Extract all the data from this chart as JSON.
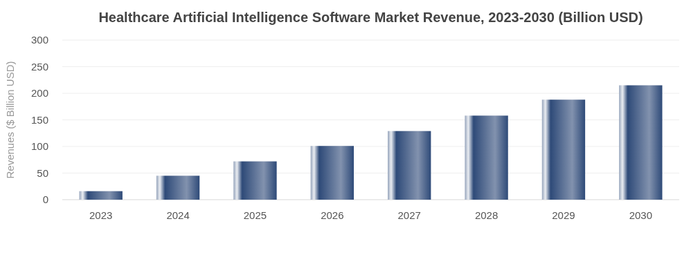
{
  "chart_data": {
    "type": "bar",
    "title": "Healthcare Artificial Intelligence Software Market Revenue, 2023-2030 (Billion USD)",
    "ylabel": "Revenues ($ Billion USD)",
    "categories": [
      "2023",
      "2024",
      "2025",
      "2026",
      "2027",
      "2028",
      "2029",
      "2030"
    ],
    "values": [
      16,
      45,
      72,
      101,
      129,
      158,
      188,
      215
    ],
    "color": "#2e4a78",
    "ylim": [
      0,
      300
    ],
    "yticks": [
      0,
      50,
      100,
      150,
      200,
      250,
      300
    ],
    "grid": "y"
  }
}
